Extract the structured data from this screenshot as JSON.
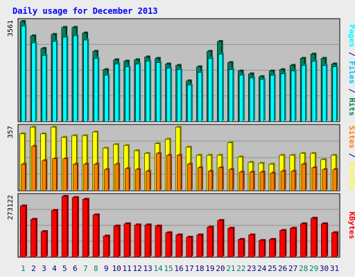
{
  "title": "Daily usage for December 2013",
  "colors": {
    "background": "#ececec",
    "plot_bg": "#c0c0c0",
    "hits": "#00805c",
    "files": "#00c0ff",
    "pages": "#00ffff",
    "visits": "#ffff00",
    "sites": "#ff8000",
    "kbytes": "#ff0000",
    "title_text": "#0000ff",
    "weekend_label": "#00805c",
    "weekday_label": "#000080"
  },
  "chart_data": [
    {
      "type": "bar",
      "title": "Daily usage for December 2013",
      "categories": [
        "1",
        "2",
        "3",
        "4",
        "5",
        "6",
        "7",
        "8",
        "9",
        "10",
        "11",
        "12",
        "13",
        "14",
        "15",
        "16",
        "17",
        "18",
        "19",
        "20",
        "21",
        "22",
        "23",
        "24",
        "25",
        "26",
        "27",
        "28",
        "29",
        "30",
        "31"
      ],
      "weekend_days": [
        "1",
        "7",
        "8",
        "14",
        "15",
        "21",
        "22",
        "28",
        "29"
      ],
      "ymax_label": "3561",
      "ylim": [
        0,
        3561
      ],
      "axis_labels": [
        {
          "text": "Pages",
          "color": "#00ffff"
        },
        {
          "text": " / ",
          "color": "#000080"
        },
        {
          "text": "Files",
          "color": "#00c0ff"
        },
        {
          "text": " / ",
          "color": "#000080"
        },
        {
          "text": "Hits",
          "color": "#00805c"
        }
      ],
      "series": [
        {
          "key": "hits",
          "values": [
            3561,
            3050,
            2600,
            3100,
            3350,
            3350,
            3150,
            2500,
            1850,
            2200,
            2150,
            2200,
            2300,
            2250,
            2050,
            2000,
            1450,
            1950,
            2500,
            2850,
            2100,
            1800,
            1700,
            1600,
            1800,
            1850,
            2000,
            2250,
            2400,
            2250,
            2050
          ]
        },
        {
          "key": "files",
          "values": [
            3400,
            2800,
            2350,
            2850,
            3000,
            3050,
            2900,
            2250,
            1650,
            2050,
            1950,
            2050,
            2150,
            2100,
            1900,
            1850,
            1300,
            1750,
            2250,
            2400,
            1850,
            1650,
            1550,
            1500,
            1650,
            1700,
            1800,
            2000,
            2150,
            2000,
            1950
          ]
        },
        {
          "key": "pages",
          "values": [
            3400,
            2800,
            2350,
            2850,
            3000,
            3050,
            2900,
            2250,
            1650,
            2050,
            1950,
            2050,
            2150,
            2100,
            1900,
            1850,
            1300,
            1750,
            2250,
            2400,
            1850,
            1650,
            1550,
            1500,
            1650,
            1700,
            1800,
            2000,
            2150,
            2000,
            1950
          ]
        }
      ]
    },
    {
      "type": "bar",
      "ymax_label": "357",
      "ylim": [
        0,
        357
      ],
      "axis_labels": [
        {
          "text": "Sites",
          "color": "#ff8000"
        },
        {
          "text": " / ",
          "color": "#000080"
        },
        {
          "text": "Visits",
          "color": "#ffff00"
        }
      ],
      "series": [
        {
          "key": "visits",
          "values": [
            320,
            357,
            320,
            357,
            300,
            310,
            310,
            330,
            240,
            260,
            255,
            225,
            210,
            265,
            290,
            357,
            245,
            200,
            200,
            200,
            270,
            190,
            160,
            155,
            150,
            200,
            200,
            210,
            210,
            175,
            200
          ]
        },
        {
          "key": "sites",
          "values": [
            150,
            250,
            170,
            180,
            180,
            150,
            150,
            150,
            120,
            150,
            125,
            120,
            110,
            210,
            200,
            200,
            150,
            130,
            110,
            130,
            120,
            105,
            105,
            105,
            100,
            110,
            110,
            150,
            130,
            120,
            120
          ]
        }
      ]
    },
    {
      "type": "bar",
      "ymax_label": "273122",
      "ylim": [
        0,
        273122
      ],
      "axis_labels": [
        {
          "text": "KBytes",
          "color": "#ff0000"
        }
      ],
      "series": [
        {
          "key": "kbytes",
          "values": [
            230000,
            170000,
            115000,
            210000,
            273122,
            268000,
            260000,
            190000,
            95000,
            140000,
            150000,
            145000,
            145000,
            140000,
            110000,
            100000,
            90000,
            100000,
            135000,
            165000,
            130000,
            80000,
            100000,
            75000,
            80000,
            120000,
            130000,
            150000,
            175000,
            150000,
            110000
          ]
        }
      ]
    }
  ]
}
